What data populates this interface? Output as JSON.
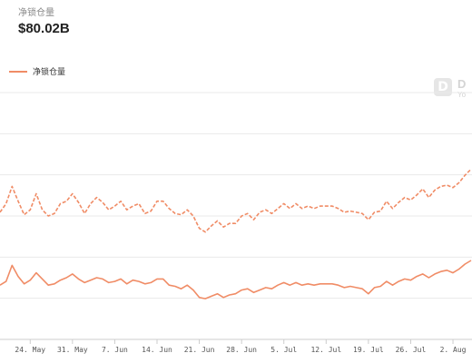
{
  "header": {
    "metric_label": "净锁仓量",
    "metric_value": "$80.02B"
  },
  "legend": {
    "label": "净锁仓量",
    "color": "#f08c66"
  },
  "watermark": {
    "icon": "defillama-logo-icon",
    "text": "D",
    "subtext": "Yo"
  },
  "chart_data": {
    "type": "line",
    "title": "",
    "xlabel": "",
    "ylabel": "",
    "x_tick_labels": [
      "24. May",
      "31. May",
      "7. Jun",
      "14. Jun",
      "21. Jun",
      "28. Jun",
      "5. Jul",
      "12. Jul",
      "19. Jul",
      "26. Jul",
      "2. Aug"
    ],
    "x_axis": {
      "start": "2021-05-19",
      "end": "2021-08-05"
    },
    "y_axis": {
      "gridlines": 7,
      "tick_labels_visible": false
    },
    "grid": true,
    "legend_position": "top-left",
    "series": [
      {
        "name": "净锁仓量",
        "style": "solid",
        "color": "#f08c66",
        "x": [
          "2021-05-19",
          "2021-05-20",
          "2021-05-21",
          "2021-05-22",
          "2021-05-23",
          "2021-05-24",
          "2021-05-25",
          "2021-05-26",
          "2021-05-27",
          "2021-05-28",
          "2021-05-29",
          "2021-05-30",
          "2021-05-31",
          "2021-06-01",
          "2021-06-02",
          "2021-06-03",
          "2021-06-04",
          "2021-06-05",
          "2021-06-06",
          "2021-06-07",
          "2021-06-08",
          "2021-06-09",
          "2021-06-10",
          "2021-06-11",
          "2021-06-12",
          "2021-06-13",
          "2021-06-14",
          "2021-06-15",
          "2021-06-16",
          "2021-06-17",
          "2021-06-18",
          "2021-06-19",
          "2021-06-20",
          "2021-06-21",
          "2021-06-22",
          "2021-06-23",
          "2021-06-24",
          "2021-06-25",
          "2021-06-26",
          "2021-06-27",
          "2021-06-28",
          "2021-06-29",
          "2021-06-30",
          "2021-07-01",
          "2021-07-02",
          "2021-07-03",
          "2021-07-04",
          "2021-07-05",
          "2021-07-06",
          "2021-07-07",
          "2021-07-08",
          "2021-07-09",
          "2021-07-10",
          "2021-07-11",
          "2021-07-12",
          "2021-07-13",
          "2021-07-14",
          "2021-07-15",
          "2021-07-16",
          "2021-07-17",
          "2021-07-18",
          "2021-07-19",
          "2021-07-20",
          "2021-07-21",
          "2021-07-22",
          "2021-07-23",
          "2021-07-24",
          "2021-07-25",
          "2021-07-26",
          "2021-07-27",
          "2021-07-28",
          "2021-07-29",
          "2021-07-30",
          "2021-07-31",
          "2021-08-01",
          "2021-08-02",
          "2021-08-03",
          "2021-08-04",
          "2021-08-05"
        ],
        "y": [
          104,
          107,
          120,
          111,
          105,
          108,
          114,
          109,
          104,
          105,
          108,
          110,
          113,
          109,
          106,
          108,
          110,
          109,
          106,
          107,
          109,
          105,
          108,
          107,
          105,
          106,
          109,
          109,
          104,
          103,
          101,
          104,
          100,
          94,
          93,
          95,
          97,
          94,
          96,
          97,
          100,
          101,
          98,
          100,
          102,
          101,
          104,
          106,
          104,
          106,
          104,
          105,
          104,
          105,
          105,
          105,
          104,
          102,
          103,
          102,
          101,
          97,
          102,
          103,
          107,
          104,
          107,
          109,
          108,
          111,
          113,
          110,
          113,
          115,
          116,
          114,
          117,
          121,
          124
        ]
      },
      {
        "name": "",
        "style": "dashed",
        "color": "#f08c66",
        "x": [
          "2021-05-19",
          "2021-05-20",
          "2021-05-21",
          "2021-05-22",
          "2021-05-23",
          "2021-05-24",
          "2021-05-25",
          "2021-05-26",
          "2021-05-27",
          "2021-05-28",
          "2021-05-29",
          "2021-05-30",
          "2021-05-31",
          "2021-06-01",
          "2021-06-02",
          "2021-06-03",
          "2021-06-04",
          "2021-06-05",
          "2021-06-06",
          "2021-06-07",
          "2021-06-08",
          "2021-06-09",
          "2021-06-10",
          "2021-06-11",
          "2021-06-12",
          "2021-06-13",
          "2021-06-14",
          "2021-06-15",
          "2021-06-16",
          "2021-06-17",
          "2021-06-18",
          "2021-06-19",
          "2021-06-20",
          "2021-06-21",
          "2021-06-22",
          "2021-06-23",
          "2021-06-24",
          "2021-06-25",
          "2021-06-26",
          "2021-06-27",
          "2021-06-28",
          "2021-06-29",
          "2021-06-30",
          "2021-07-01",
          "2021-07-02",
          "2021-07-03",
          "2021-07-04",
          "2021-07-05",
          "2021-07-06",
          "2021-07-07",
          "2021-07-08",
          "2021-07-09",
          "2021-07-10",
          "2021-07-11",
          "2021-07-12",
          "2021-07-13",
          "2021-07-14",
          "2021-07-15",
          "2021-07-16",
          "2021-07-17",
          "2021-07-18",
          "2021-07-19",
          "2021-07-20",
          "2021-07-21",
          "2021-07-22",
          "2021-07-23",
          "2021-07-24",
          "2021-07-25",
          "2021-07-26",
          "2021-07-27",
          "2021-07-28",
          "2021-07-29",
          "2021-07-30",
          "2021-07-31",
          "2021-08-01",
          "2021-08-02",
          "2021-08-03",
          "2021-08-04",
          "2021-08-05"
        ],
        "y": [
          163,
          170,
          184,
          172,
          161,
          165,
          178,
          165,
          160,
          162,
          170,
          172,
          178,
          171,
          162,
          170,
          175,
          171,
          165,
          168,
          172,
          165,
          168,
          170,
          162,
          164,
          172,
          172,
          166,
          162,
          161,
          165,
          160,
          150,
          147,
          152,
          156,
          151,
          154,
          154,
          160,
          162,
          157,
          163,
          165,
          162,
          166,
          170,
          166,
          170,
          166,
          168,
          166,
          168,
          168,
          168,
          166,
          163,
          164,
          163,
          162,
          157,
          163,
          164,
          172,
          166,
          171,
          175,
          173,
          177,
          182,
          175,
          181,
          184,
          185,
          183,
          187,
          193,
          198
        ]
      }
    ]
  }
}
